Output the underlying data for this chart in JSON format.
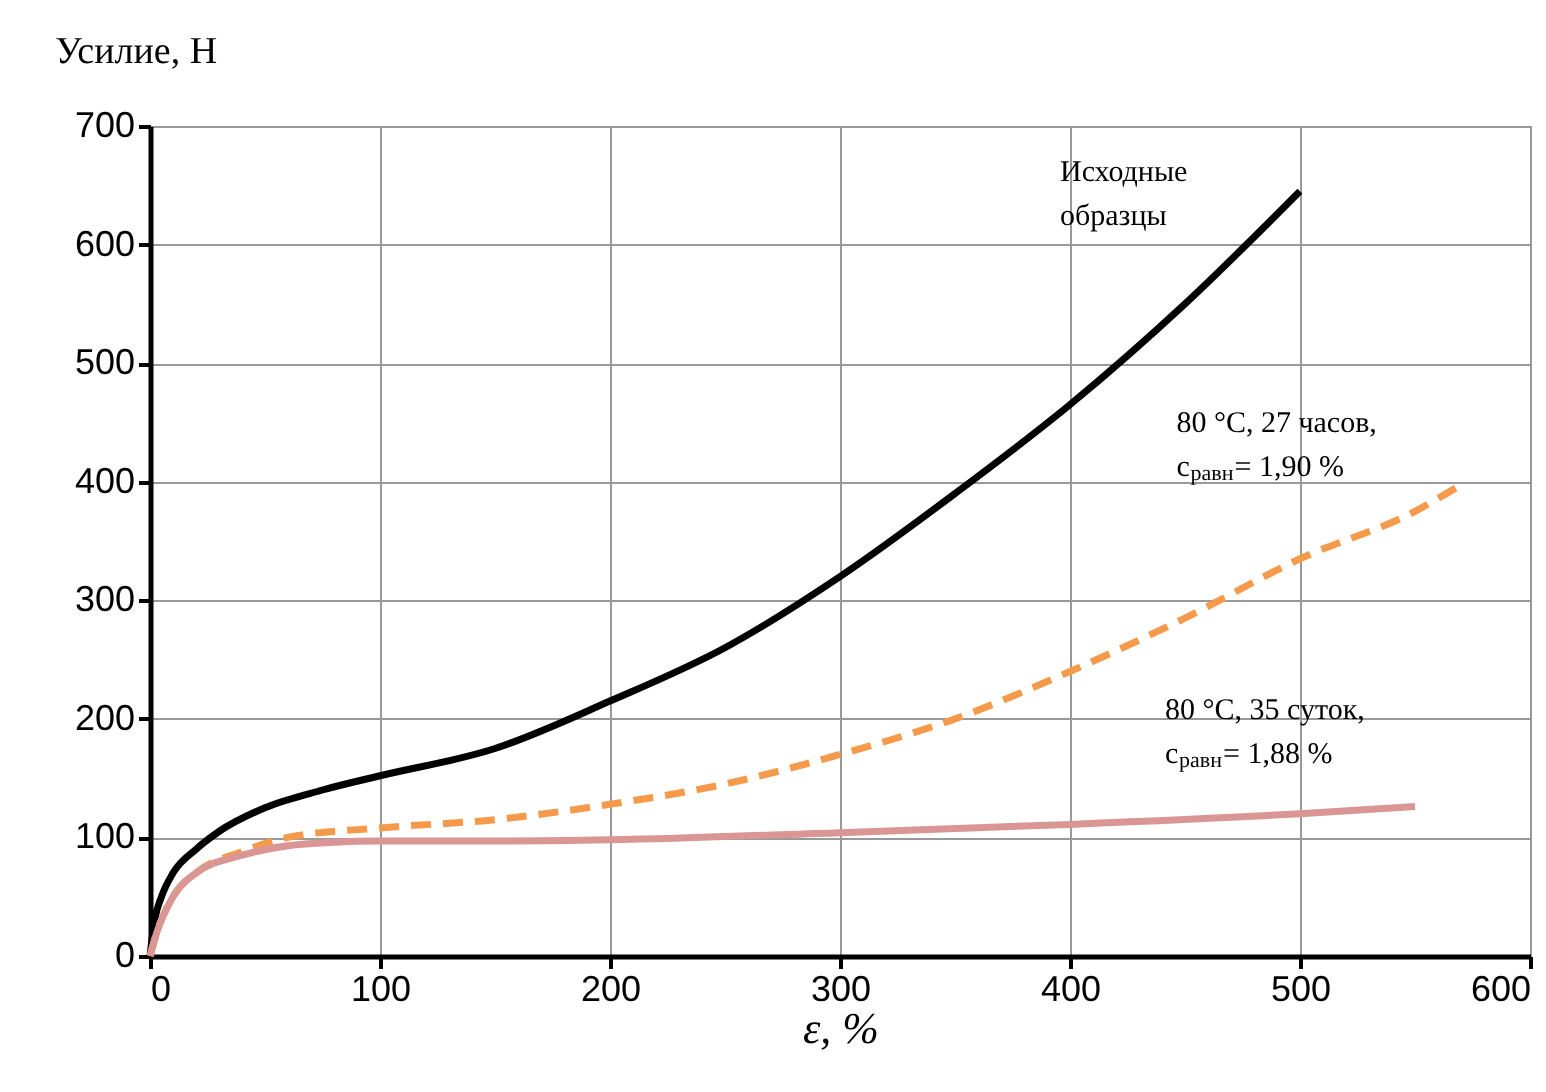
{
  "chart_data": {
    "type": "line",
    "xlabel": "ε, %",
    "ylabel": "Усилие, Н",
    "xlim": [
      0,
      600
    ],
    "xticks": [
      0,
      100,
      200,
      300,
      400,
      500,
      600
    ],
    "ylim": [
      0,
      700
    ],
    "yticks": [
      0,
      100,
      200,
      300,
      400,
      500,
      600,
      700
    ],
    "grid": true,
    "marker": "none",
    "series": [
      {
        "name": "Исходные\nобразцы",
        "color": "#000000",
        "line_style": "solid",
        "x": [
          0,
          2,
          5,
          10,
          20,
          30,
          50,
          75,
          100,
          150,
          200,
          250,
          300,
          350,
          400,
          450,
          500
        ],
        "values": [
          0,
          30,
          50,
          70,
          90,
          105,
          125,
          140,
          152,
          175,
          215,
          260,
          320,
          390,
          465,
          550,
          645
        ]
      },
      {
        "name": "80 °C, 27 часов,\nc$_{равн}$= 1,90 %",
        "color": "#f59a4a",
        "line_style": "dashed",
        "x": [
          0,
          3,
          10,
          20,
          40,
          60,
          100,
          150,
          200,
          250,
          300,
          350,
          400,
          450,
          500,
          550,
          568
        ],
        "values": [
          0,
          20,
          50,
          70,
          88,
          100,
          108,
          115,
          128,
          145,
          170,
          200,
          240,
          285,
          335,
          375,
          395
        ]
      },
      {
        "name": "80 °C, 35 суток,\nc$_{равн}$= 1,88 %",
        "color": "#d99694",
        "line_style": "solid",
        "x": [
          0,
          3,
          10,
          20,
          40,
          60,
          80,
          100,
          150,
          200,
          300,
          400,
          500,
          550
        ],
        "values": [
          0,
          20,
          50,
          70,
          85,
          93,
          96,
          97,
          97,
          98,
          104,
          111,
          120,
          126
        ]
      }
    ]
  }
}
